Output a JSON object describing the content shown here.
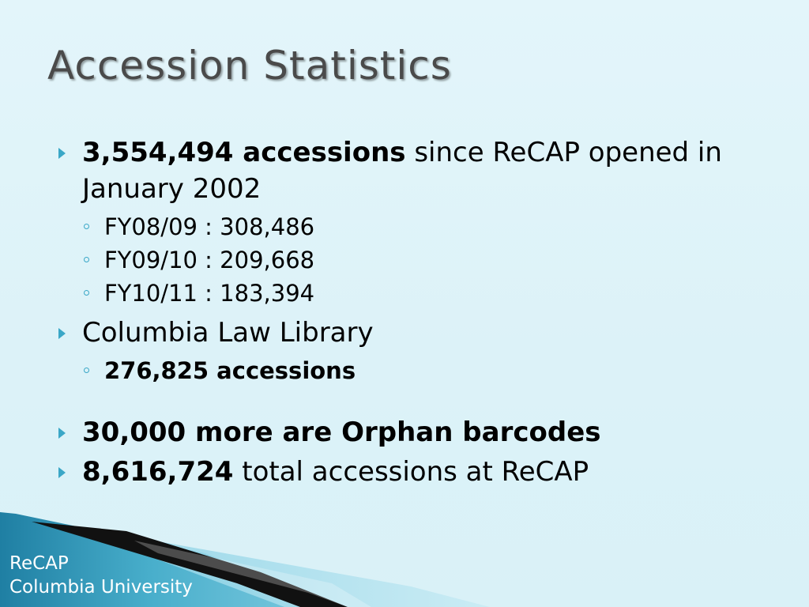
{
  "slide": {
    "title": "Accession Statistics",
    "bullets": [
      {
        "bold": "3,554,494 accessions",
        "rest": " since ReCAP opened in January 2002",
        "sub": [
          "FY08/09 : 308,486",
          "FY09/10 : 209,668",
          "FY10/11 : 183,394"
        ]
      },
      {
        "text": "Columbia Law Library",
        "sub_bold": "276,825 accessions"
      },
      {
        "bold": "30,000 more are Orphan barcodes"
      },
      {
        "bold": "8,616,724",
        "rest": " total accessions at ReCAP"
      }
    ],
    "footer": {
      "line1": "ReCAP",
      "line2": "Columbia University"
    }
  },
  "colors": {
    "background": "#dff3f9",
    "accent": "#3aa7c7",
    "footer_band": "#2a8fb0",
    "title": "#4a4a4a"
  }
}
